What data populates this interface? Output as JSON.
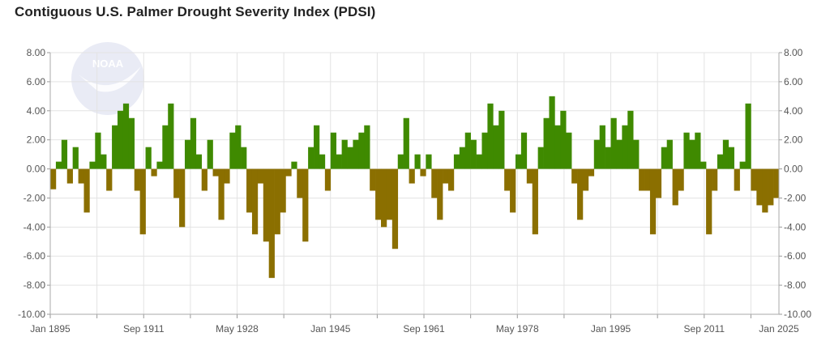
{
  "chart_data": {
    "type": "bar",
    "title": "Contiguous U.S. Palmer Drought Severity Index (PDSI)",
    "xlabel": "",
    "ylabel": "",
    "ylim": [
      -10,
      8
    ],
    "y_ticks": [
      "8.00",
      "6.00",
      "4.00",
      "2.00",
      "0.00",
      "-2.00",
      "-4.00",
      "-6.00",
      "-8.00",
      "-10.00"
    ],
    "x_ticks": [
      "Jan 1895",
      "Sep 1911",
      "May 1928",
      "Jan 1945",
      "Sep 1961",
      "May 1978",
      "Jan 1995",
      "Sep 2011",
      "Jan 2025"
    ],
    "x_range": [
      "Jan 1895",
      "Jan 2025"
    ],
    "grid": true,
    "y_axis_both_sides": true,
    "watermark": "NOAA",
    "colors": {
      "positive": "#3f8a00",
      "negative": "#8b6f00"
    },
    "x_years": [
      1895,
      1896,
      1897,
      1898,
      1899,
      1900,
      1901,
      1902,
      1903,
      1904,
      1905,
      1906,
      1907,
      1908,
      1909,
      1910,
      1911,
      1912,
      1913,
      1914,
      1915,
      1916,
      1917,
      1918,
      1919,
      1920,
      1921,
      1922,
      1923,
      1924,
      1925,
      1926,
      1927,
      1928,
      1929,
      1930,
      1931,
      1932,
      1933,
      1934,
      1935,
      1936,
      1937,
      1938,
      1939,
      1940,
      1941,
      1942,
      1943,
      1944,
      1945,
      1946,
      1947,
      1948,
      1949,
      1950,
      1951,
      1952,
      1953,
      1954,
      1955,
      1956,
      1957,
      1958,
      1959,
      1960,
      1961,
      1962,
      1963,
      1964,
      1965,
      1966,
      1967,
      1968,
      1969,
      1970,
      1971,
      1972,
      1973,
      1974,
      1975,
      1976,
      1977,
      1978,
      1979,
      1980,
      1981,
      1982,
      1983,
      1984,
      1985,
      1986,
      1987,
      1988,
      1989,
      1990,
      1991,
      1992,
      1993,
      1994,
      1995,
      1996,
      1997,
      1998,
      1999,
      2000,
      2001,
      2002,
      2003,
      2004,
      2005,
      2006,
      2007,
      2008,
      2009,
      2010,
      2011,
      2012,
      2013,
      2014,
      2015,
      2016,
      2017,
      2018,
      2019,
      2020,
      2021,
      2022,
      2023,
      2024
    ],
    "values": [
      -1.4,
      0.5,
      2.0,
      -1.0,
      1.5,
      -1.0,
      -3.0,
      0.5,
      2.5,
      1.0,
      -1.5,
      3.0,
      4.0,
      4.5,
      3.5,
      -1.5,
      -4.5,
      1.5,
      -0.5,
      0.5,
      3.0,
      4.5,
      -2.0,
      -4.0,
      2.0,
      3.5,
      1.0,
      -1.5,
      2.0,
      -0.5,
      -3.5,
      -1.0,
      2.5,
      3.0,
      1.5,
      -3.0,
      -4.5,
      -1.0,
      -5.0,
      -7.5,
      -4.5,
      -3.0,
      -0.5,
      0.5,
      -2.0,
      -5.0,
      1.5,
      3.0,
      1.0,
      -1.5,
      2.5,
      1.0,
      2.0,
      1.5,
      2.0,
      2.5,
      3.0,
      -1.5,
      -3.5,
      -4.0,
      -3.5,
      -5.5,
      1.0,
      3.5,
      -1.0,
      1.0,
      -0.5,
      1.0,
      -2.0,
      -3.5,
      -1.0,
      -1.5,
      1.0,
      1.5,
      2.5,
      2.0,
      1.0,
      2.5,
      4.5,
      3.0,
      4.0,
      -1.5,
      -3.0,
      1.0,
      2.5,
      -1.0,
      -4.5,
      1.5,
      3.5,
      5.0,
      3.0,
      4.0,
      2.5,
      -1.0,
      -3.5,
      -1.5,
      -0.5,
      2.0,
      3.0,
      1.5,
      3.5,
      2.0,
      3.0,
      4.0,
      2.0,
      -1.5,
      -1.5,
      -4.5,
      -2.0,
      1.5,
      2.0,
      -2.5,
      -1.5,
      2.5,
      2.0,
      2.5,
      0.5,
      -4.5,
      -1.5,
      1.0,
      2.0,
      1.5,
      -1.5,
      0.5,
      4.5,
      -1.5,
      -2.5,
      -3.0,
      -2.5,
      -2.0
    ]
  }
}
